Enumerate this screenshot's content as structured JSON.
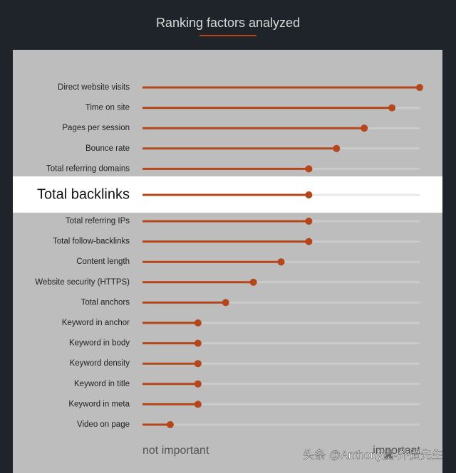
{
  "chart_data": {
    "type": "lollipop",
    "title": "Ranking factors analyzed",
    "categories": [
      "Direct website visits",
      "Time on site",
      "Pages per session",
      "Bounce rate",
      "Total referring domains",
      "Total backlinks",
      "Total referring IPs",
      "Total follow-backlinks",
      "Content length",
      "Website security (HTTPS)",
      "Total anchors",
      "Keyword in anchor",
      "Keyword in body",
      "Keyword density",
      "Keyword in title",
      "Keyword in meta",
      "Video on page"
    ],
    "values": [
      100,
      90,
      80,
      70,
      60,
      60,
      60,
      60,
      50,
      40,
      30,
      20,
      20,
      20,
      20,
      20,
      10
    ],
    "xlim": [
      0,
      100
    ],
    "color": "#b5451b",
    "highlight": 5,
    "x_min_label": "not important",
    "x_max_label": "important",
    "watermark": "头条 @Anthony虞-外贸先生"
  }
}
